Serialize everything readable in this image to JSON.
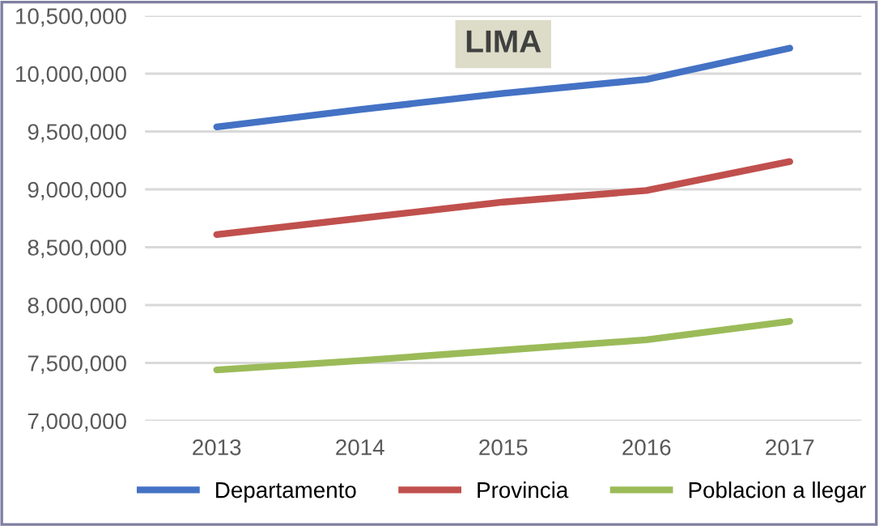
{
  "chart_data": {
    "type": "line",
    "title": "LIMA",
    "categories": [
      "2013",
      "2014",
      "2015",
      "2016",
      "2017"
    ],
    "series": [
      {
        "name": "Departamento",
        "color": "#4472c4",
        "values": [
          9540000,
          9690000,
          9830000,
          9950000,
          10220000
        ]
      },
      {
        "name": "Provincia",
        "color": "#c0504d",
        "values": [
          8610000,
          8750000,
          8890000,
          8990000,
          9240000
        ]
      },
      {
        "name": "Poblacion a llegar",
        "color": "#9bbb59",
        "values": [
          7440000,
          7520000,
          7610000,
          7700000,
          7860000
        ]
      }
    ],
    "ylim": [
      7000000,
      10500000
    ],
    "yticks": [
      {
        "value": 7000000,
        "label": "7,000,000"
      },
      {
        "value": 7500000,
        "label": "7,500,000"
      },
      {
        "value": 8000000,
        "label": "8,000,000"
      },
      {
        "value": 8500000,
        "label": "8,500,000"
      },
      {
        "value": 9000000,
        "label": "9,000,000"
      },
      {
        "value": 9500000,
        "label": "9,500,000"
      },
      {
        "value": 10000000,
        "label": "10,000,000"
      },
      {
        "value": 10500000,
        "label": "10,500,000"
      }
    ],
    "grid": "y",
    "legend": "bottom",
    "marker": "none",
    "line_style": "solid"
  }
}
